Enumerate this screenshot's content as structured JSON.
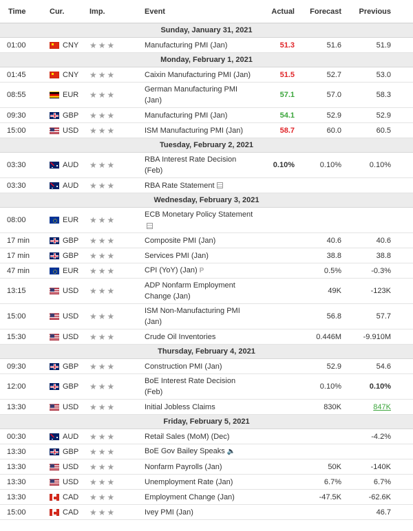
{
  "header": {
    "time": "Time",
    "cur": "Cur.",
    "imp": "Imp.",
    "event": "Event",
    "actual": "Actual",
    "forecast": "Forecast",
    "previous": "Previous"
  },
  "flag_colors": {
    "CNY": [
      "#de2910",
      "#de2910"
    ],
    "EUR_DE": [
      "#000000",
      "#dd0000",
      "#ffce00"
    ],
    "GBP": [
      "#012169",
      "#c8102e"
    ],
    "USD": [
      "#b22234",
      "#3c3b6e"
    ],
    "AUD": [
      "#012169",
      "#ffffff"
    ],
    "EUR": [
      "#003399",
      "#ffcc00"
    ],
    "CAD": [
      "#d52b1e",
      "#ffffff"
    ]
  },
  "days": [
    {
      "date": "Sunday, January 31, 2021",
      "events": [
        {
          "time": "01:00",
          "flag": "cn",
          "cur": "CNY",
          "stars": "★★★",
          "event": "Manufacturing PMI (Jan)",
          "actual": "51.3",
          "actual_style": "red",
          "forecast": "51.6",
          "previous": "51.9",
          "tall": false
        }
      ]
    },
    {
      "date": "Monday, February 1, 2021",
      "events": [
        {
          "time": "01:45",
          "flag": "cn",
          "cur": "CNY",
          "stars": "★★★",
          "event": "Caixin Manufacturing PMI (Jan)",
          "actual": "51.5",
          "actual_style": "red",
          "forecast": "52.7",
          "previous": "53.0",
          "tall": false
        },
        {
          "time": "08:55",
          "flag": "de",
          "cur": "EUR",
          "stars": "★★★",
          "event": "German Manufacturing PMI (Jan)",
          "actual": "57.1",
          "actual_style": "green",
          "forecast": "57.0",
          "previous": "58.3",
          "tall": true
        },
        {
          "time": "09:30",
          "flag": "gb",
          "cur": "GBP",
          "stars": "★★★",
          "event": "Manufacturing PMI (Jan)",
          "actual": "54.1",
          "actual_style": "green",
          "forecast": "52.9",
          "previous": "52.9",
          "tall": false
        },
        {
          "time": "15:00",
          "flag": "us",
          "cur": "USD",
          "stars": "★★★",
          "event": "ISM Manufacturing PMI (Jan)",
          "actual": "58.7",
          "actual_style": "red",
          "forecast": "60.0",
          "previous": "60.5",
          "tall": false
        }
      ]
    },
    {
      "date": "Tuesday, February 2, 2021",
      "events": [
        {
          "time": "03:30",
          "flag": "au",
          "cur": "AUD",
          "stars": "★★★",
          "event": "RBA Interest Rate Decision (Feb)",
          "actual": "0.10%",
          "actual_style": "bold",
          "forecast": "0.10%",
          "previous": "0.10%",
          "tall": true
        },
        {
          "time": "03:30",
          "flag": "au",
          "cur": "AUD",
          "stars": "★★★",
          "event": "RBA Rate Statement",
          "icon": "doc",
          "actual": "",
          "forecast": "",
          "previous": "",
          "tall": false
        }
      ]
    },
    {
      "date": "Wednesday, February 3, 2021",
      "events": [
        {
          "time": "08:00",
          "flag": "eu",
          "cur": "EUR",
          "stars": "★★★",
          "event": "ECB Monetary Policy Statement",
          "icon": "doc",
          "actual": "",
          "forecast": "",
          "previous": "",
          "tall": true
        },
        {
          "time": "17 min",
          "flag": "gb",
          "cur": "GBP",
          "stars": "★★★",
          "event": "Composite PMI (Jan)",
          "actual": "",
          "forecast": "40.6",
          "previous": "40.6",
          "tall": false
        },
        {
          "time": "17 min",
          "flag": "gb",
          "cur": "GBP",
          "stars": "★★★",
          "event": "Services PMI (Jan)",
          "actual": "",
          "forecast": "38.8",
          "previous": "38.8",
          "tall": false
        },
        {
          "time": "47 min",
          "flag": "eu",
          "cur": "EUR",
          "stars": "★★★",
          "event": "CPI (YoY) (Jan)",
          "icon": "p",
          "actual": "",
          "forecast": "0.5%",
          "previous": "-0.3%",
          "tall": false
        },
        {
          "time": "13:15",
          "flag": "us",
          "cur": "USD",
          "stars": "★★★",
          "event": "ADP Nonfarm Employment Change (Jan)",
          "actual": "",
          "forecast": "49K",
          "previous": "-123K",
          "tall": true
        },
        {
          "time": "15:00",
          "flag": "us",
          "cur": "USD",
          "stars": "★★★",
          "event": "ISM Non-Manufacturing PMI (Jan)",
          "actual": "",
          "forecast": "56.8",
          "previous": "57.7",
          "tall": true
        },
        {
          "time": "15:30",
          "flag": "us",
          "cur": "USD",
          "stars": "★★★",
          "event": "Crude Oil Inventories",
          "actual": "",
          "forecast": "0.446M",
          "previous": "-9.910M",
          "tall": false
        }
      ]
    },
    {
      "date": "Thursday, February 4, 2021",
      "events": [
        {
          "time": "09:30",
          "flag": "gb",
          "cur": "GBP",
          "stars": "★★★",
          "event": "Construction PMI (Jan)",
          "actual": "",
          "forecast": "52.9",
          "previous": "54.6",
          "tall": false
        },
        {
          "time": "12:00",
          "flag": "gb",
          "cur": "GBP",
          "stars": "★★★",
          "event": "BoE Interest Rate Decision (Feb)",
          "actual": "",
          "forecast": "0.10%",
          "previous": "0.10%",
          "previous_style": "bold",
          "tall": true
        },
        {
          "time": "13:30",
          "flag": "us",
          "cur": "USD",
          "stars": "★★★",
          "event": "Initial Jobless Claims",
          "actual": "",
          "forecast": "830K",
          "previous": "847K",
          "previous_style": "ulgreen",
          "tall": false
        }
      ]
    },
    {
      "date": "Friday, February 5, 2021",
      "events": [
        {
          "time": "00:30",
          "flag": "au",
          "cur": "AUD",
          "stars": "★★★",
          "event": "Retail Sales (MoM) (Dec)",
          "actual": "",
          "forecast": "",
          "previous": "-4.2%",
          "tall": false
        },
        {
          "time": "13:30",
          "flag": "gb",
          "cur": "GBP",
          "stars": "★★★",
          "event": "BoE Gov Bailey Speaks",
          "icon": "speaker",
          "actual": "",
          "forecast": "",
          "previous": "",
          "tall": false
        },
        {
          "time": "13:30",
          "flag": "us",
          "cur": "USD",
          "stars": "★★★",
          "event": "Nonfarm Payrolls (Jan)",
          "actual": "",
          "forecast": "50K",
          "previous": "-140K",
          "tall": false
        },
        {
          "time": "13:30",
          "flag": "us",
          "cur": "USD",
          "stars": "★★★",
          "event": "Unemployment Rate (Jan)",
          "actual": "",
          "forecast": "6.7%",
          "previous": "6.7%",
          "tall": false
        },
        {
          "time": "13:30",
          "flag": "ca",
          "cur": "CAD",
          "stars": "★★★",
          "event": "Employment Change (Jan)",
          "actual": "",
          "forecast": "-47.5K",
          "previous": "-62.6K",
          "tall": false
        },
        {
          "time": "15:00",
          "flag": "ca",
          "cur": "CAD",
          "stars": "★★★",
          "event": "Ivey PMI (Jan)",
          "actual": "",
          "forecast": "",
          "previous": "46.7",
          "tall": false
        }
      ]
    }
  ]
}
